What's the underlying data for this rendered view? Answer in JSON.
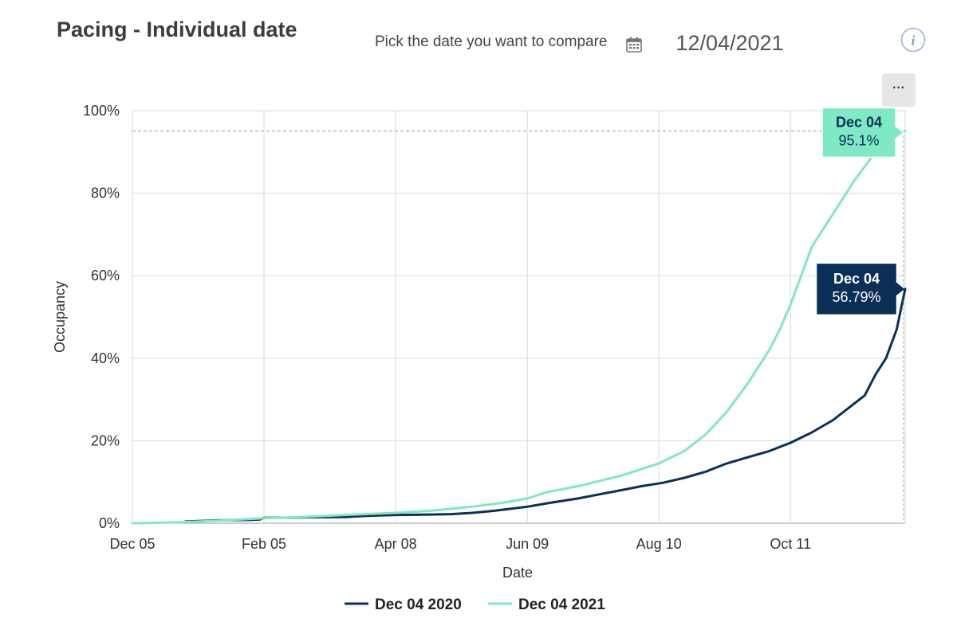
{
  "header": {
    "title": "Pacing - Individual date",
    "picker_label": "Pick the date you want to compare",
    "date_value": "12/04/2021",
    "info_label": "i",
    "menu_label": "···"
  },
  "colors": {
    "series_2020": "#0b2f57",
    "series_2021": "#7fe8c4",
    "tooltip_2021_bg": "#7fe8c4",
    "tooltip_2020_bg": "#0b2f57"
  },
  "icons": {
    "calendar": "calendar-icon",
    "info": "info-icon",
    "menu": "more-options-icon"
  },
  "chart_data": {
    "type": "line",
    "xlabel": "Date",
    "ylabel": "Occupancy",
    "x_ticks": [
      "Dec 05",
      "Feb 05",
      "Apr 08",
      "Jun 09",
      "Aug 10",
      "Oct 11"
    ],
    "x_tick_days": [
      0,
      62,
      124,
      186,
      248,
      310
    ],
    "x_range_days": [
      0,
      364
    ],
    "y_ticks": [
      "0%",
      "20%",
      "40%",
      "60%",
      "80%",
      "100%"
    ],
    "y_tick_values": [
      0,
      20,
      40,
      60,
      80,
      100
    ],
    "ylim": [
      0,
      100
    ],
    "grid": true,
    "reference_line": 95.1,
    "legend_position": "bottom-center",
    "series": [
      {
        "name": "Dec 04 2020",
        "color": "#0b2f57",
        "x": [
          25,
          40,
          55,
          60,
          62,
          80,
          100,
          110,
          124,
          140,
          150,
          160,
          170,
          186,
          195,
          210,
          220,
          230,
          240,
          250,
          260,
          270,
          280,
          290,
          300,
          310,
          320,
          330,
          340,
          345,
          350,
          355,
          360,
          364
        ],
        "y": [
          0.4,
          0.7,
          0.8,
          0.9,
          1.3,
          1.4,
          1.5,
          1.8,
          2.0,
          2.1,
          2.2,
          2.5,
          3.0,
          4.0,
          4.8,
          6.0,
          7.0,
          8.0,
          9.0,
          9.8,
          11.0,
          12.5,
          14.5,
          16.0,
          17.5,
          19.5,
          22.0,
          25.0,
          29.0,
          31.0,
          36.0,
          40.0,
          47.0,
          56.79
        ]
      },
      {
        "name": "Dec 04 2021",
        "color": "#7fe8c4",
        "x": [
          0,
          20,
          40,
          62,
          80,
          100,
          124,
          140,
          160,
          175,
          186,
          195,
          210,
          230,
          248,
          260,
          270,
          280,
          290,
          300,
          305,
          310,
          315,
          320,
          330,
          340,
          350,
          358,
          364
        ],
        "y": [
          0,
          0.2,
          0.6,
          1.2,
          1.5,
          2.0,
          2.5,
          3.0,
          4.0,
          5.0,
          6.0,
          7.5,
          9.0,
          11.5,
          14.5,
          17.5,
          21.5,
          27.0,
          34.0,
          42.0,
          47.0,
          53.0,
          60.0,
          67.0,
          75.0,
          83.0,
          90.0,
          94.0,
          95.1
        ]
      }
    ],
    "tooltips": [
      {
        "series": "Dec 04 2021",
        "date": "Dec 04",
        "value": "95.1%",
        "x": 364,
        "y": 95.1
      },
      {
        "series": "Dec 04 2020",
        "date": "Dec 04",
        "value": "56.79%",
        "x": 364,
        "y": 56.79
      }
    ]
  }
}
